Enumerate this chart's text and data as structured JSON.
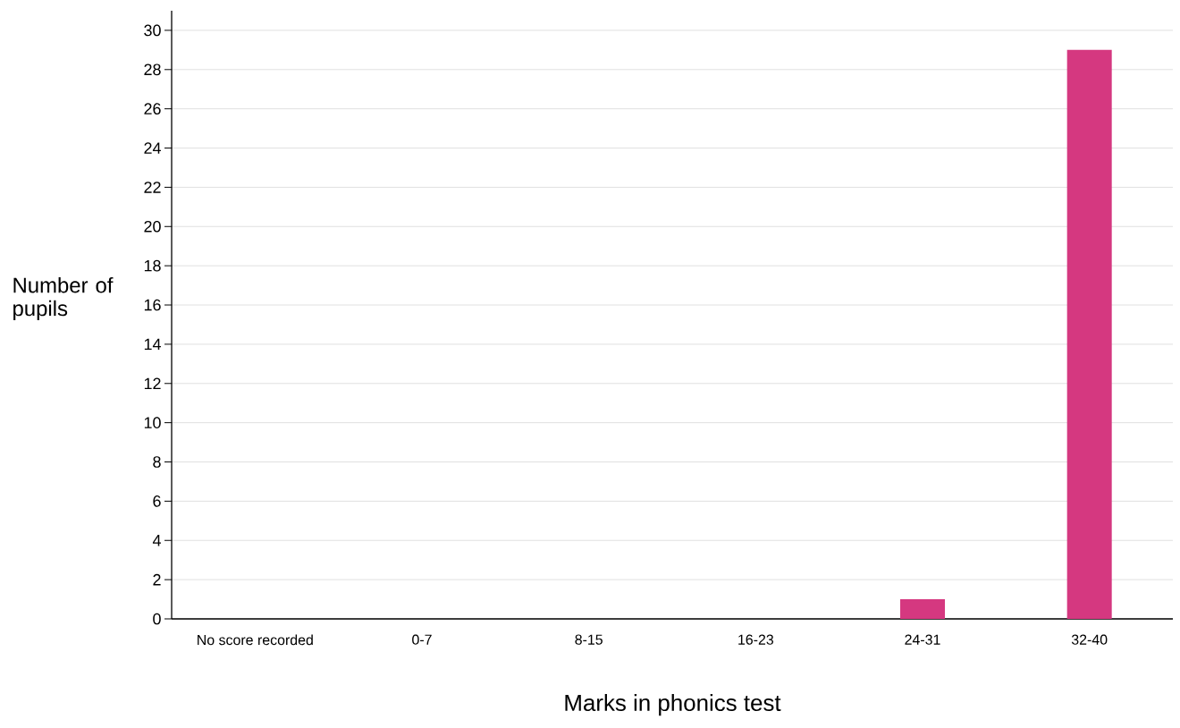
{
  "chart_data": {
    "type": "bar",
    "categories": [
      "No score recorded",
      "0-7",
      "8-15",
      "16-23",
      "24-31",
      "32-40"
    ],
    "values": [
      0,
      0,
      0,
      0,
      1,
      29
    ],
    "color": "#d53880",
    "xlabel": "Marks in phonics test",
    "ylabel": "Number of pupils",
    "ylim": [
      0,
      31
    ],
    "yticks": [
      0,
      2,
      4,
      6,
      8,
      10,
      12,
      14,
      16,
      18,
      20,
      22,
      24,
      26,
      28,
      30
    ],
    "grid": "y"
  }
}
